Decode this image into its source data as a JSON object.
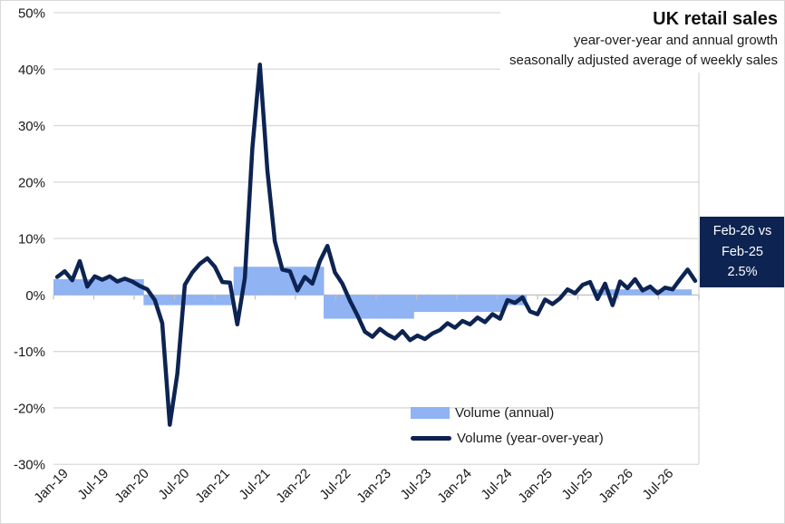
{
  "header": {
    "title": "UK retail sales",
    "subtitle_line1": "year-over-year and annual growth",
    "subtitle_line2": "seasonally adjusted average of weekly sales"
  },
  "annotation_box": {
    "line1": "Feb-26 vs",
    "line2": "Feb-25",
    "line3": "2.5%"
  },
  "legend": {
    "items": [
      {
        "label": "Volume (annual)"
      },
      {
        "label": "Volume (year-over-year)"
      }
    ]
  },
  "colors": {
    "navy": "#0d2452",
    "bar_blue": "#8fb3f3",
    "gridline": "#d9d9d9",
    "axis": "#c0c0c0",
    "text": "#1a1a1a",
    "background": "#ffffff"
  },
  "chart_data": {
    "type": "line+bar",
    "title": "UK retail sales",
    "subtitle": "year-over-year and annual growth, seasonally adjusted average of weekly sales",
    "grid": "horizontal",
    "legend_position": "inside-bottom-right",
    "x_axis": {
      "unit": "month",
      "start": "Jan-19",
      "end": "Feb-26",
      "points_per_series": 86,
      "tick_labels": [
        "Jan-19",
        "Jul-19",
        "Jan-20",
        "Jul-20",
        "Jan-21",
        "Jul-21",
        "Jan-22",
        "Jul-22",
        "Jan-23",
        "Jul-23",
        "Jan-24",
        "Jul-24",
        "Jan-25",
        "Jul-25",
        "Jan-26",
        "Jul-26"
      ]
    },
    "y_axis": {
      "unit": "percent",
      "ylim": [
        -30,
        50
      ],
      "tick_values": [
        50,
        40,
        30,
        20,
        10,
        0,
        -10,
        -20,
        -30
      ],
      "tick_labels": [
        "50%",
        "40%",
        "30%",
        "20%",
        "10%",
        "0%",
        "-10%",
        "-20%",
        "-30%"
      ]
    },
    "series": [
      {
        "name": "Volume (annual)",
        "type": "bar",
        "color": "#8fb3f3",
        "values": [
          2.8,
          2.8,
          2.8,
          2.8,
          2.8,
          2.8,
          2.8,
          2.8,
          2.8,
          2.8,
          2.8,
          2.8,
          -1.8,
          -1.8,
          -1.8,
          -1.8,
          -1.8,
          -1.8,
          -1.8,
          -1.8,
          -1.8,
          -1.8,
          -1.8,
          -1.8,
          5.0,
          5.0,
          5.0,
          5.0,
          5.0,
          5.0,
          5.0,
          5.0,
          5.0,
          5.0,
          5.0,
          5.0,
          -4.2,
          -4.2,
          -4.2,
          -4.2,
          -4.2,
          -4.2,
          -4.2,
          -4.2,
          -4.2,
          -4.2,
          -4.2,
          -4.2,
          -3.0,
          -3.0,
          -3.0,
          -3.0,
          -3.0,
          -3.0,
          -3.0,
          -3.0,
          -3.0,
          -3.0,
          -3.0,
          -3.0,
          -1.8,
          -1.8,
          -1.8,
          0,
          0,
          0,
          0,
          0,
          0,
          0,
          0,
          0,
          1.0,
          1.0,
          1.0,
          1.0,
          1.0,
          1.0,
          1.0,
          1.0,
          1.0,
          1.0,
          1.0,
          1.0,
          1.0,
          0
        ]
      },
      {
        "name": "Volume (year-over-year)",
        "type": "line",
        "color": "#0d2452",
        "values": [
          3.2,
          4.2,
          2.6,
          6.0,
          1.5,
          3.3,
          2.7,
          3.3,
          2.4,
          2.9,
          2.4,
          1.6,
          1.0,
          -0.9,
          -5.0,
          -23.0,
          -14.0,
          1.8,
          4.0,
          5.5,
          6.5,
          5.0,
          2.3,
          2.2,
          -5.2,
          3.0,
          26.0,
          40.8,
          22.0,
          9.5,
          4.5,
          4.2,
          0.8,
          3.2,
          2.0,
          6.0,
          8.7,
          4.0,
          2.0,
          -1.0,
          -3.6,
          -6.5,
          -7.4,
          -6.0,
          -7.0,
          -7.7,
          -6.4,
          -8.0,
          -7.2,
          -7.8,
          -6.8,
          -6.2,
          -5.0,
          -5.8,
          -4.6,
          -5.2,
          -4.0,
          -4.8,
          -3.4,
          -4.2,
          -0.9,
          -1.4,
          -0.4,
          -2.9,
          -3.4,
          -0.8,
          -1.6,
          -0.6,
          1.0,
          0.3,
          1.8,
          2.3,
          -0.7,
          2.0,
          -1.8,
          2.4,
          1.2,
          2.8,
          0.8,
          1.5,
          0.3,
          1.3,
          1.0,
          2.8,
          4.5,
          2.5
        ]
      }
    ],
    "annotation": {
      "text": "Feb-26 vs Feb-25 2.5%",
      "compare": [
        "Feb-26",
        "Feb-25"
      ],
      "value_pct": 2.5
    }
  }
}
